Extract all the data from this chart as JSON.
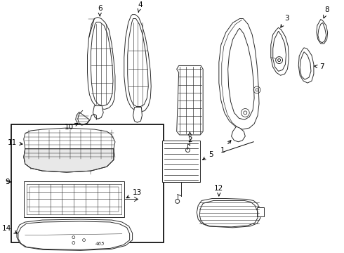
{
  "background_color": "#ffffff",
  "line_color": "#2a2a2a",
  "figure_width": 4.9,
  "figure_height": 3.6,
  "dpi": 100,
  "label_fontsize": 7.5,
  "lw": 0.7
}
